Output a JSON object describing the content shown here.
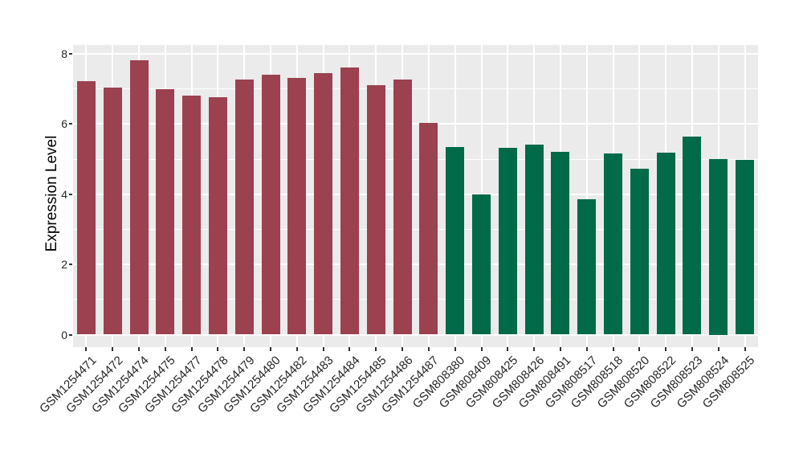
{
  "chart_data": {
    "type": "bar",
    "title": "",
    "xlabel": "",
    "ylabel": "Expression Level",
    "ylim": [
      -0.41,
      8.25
    ],
    "yticks": [
      0,
      2,
      4,
      6,
      8
    ],
    "x_tick_rotation": 45,
    "legend_position": "none",
    "grid": true,
    "panel_bg": "#ebebeb",
    "gridline_color": "#ffffff",
    "tick_mark_color": "#333333",
    "axis_text_color": "#262626",
    "axis_title_color": "#000000",
    "categories": [
      "GSM1254471",
      "GSM1254472",
      "GSM1254474",
      "GSM1254475",
      "GSM1254477",
      "GSM1254478",
      "GSM1254479",
      "GSM1254480",
      "GSM1254482",
      "GSM1254483",
      "GSM1254484",
      "GSM1254485",
      "GSM1254486",
      "GSM1254487",
      "GSM808380",
      "GSM808409",
      "GSM808425",
      "GSM808426",
      "GSM808491",
      "GSM808517",
      "GSM808518",
      "GSM808520",
      "GSM808522",
      "GSM808523",
      "GSM808524",
      "GSM808525"
    ],
    "values": [
      7.21,
      7.03,
      7.82,
      6.98,
      6.81,
      6.77,
      7.27,
      7.41,
      7.32,
      7.44,
      7.6,
      7.1,
      7.27,
      6.04,
      5.34,
      4.0,
      5.31,
      5.42,
      5.2,
      3.86,
      5.17,
      4.73,
      5.18,
      5.65,
      5.0,
      4.98
    ],
    "groups": [
      "group1",
      "group1",
      "group1",
      "group1",
      "group1",
      "group1",
      "group1",
      "group1",
      "group1",
      "group1",
      "group1",
      "group1",
      "group1",
      "group1",
      "group2",
      "group2",
      "group2",
      "group2",
      "group2",
      "group2",
      "group2",
      "group2",
      "group2",
      "group2",
      "group2",
      "group2"
    ],
    "group_colors": {
      "group1": "#9b4150",
      "group2": "#016a49"
    }
  }
}
